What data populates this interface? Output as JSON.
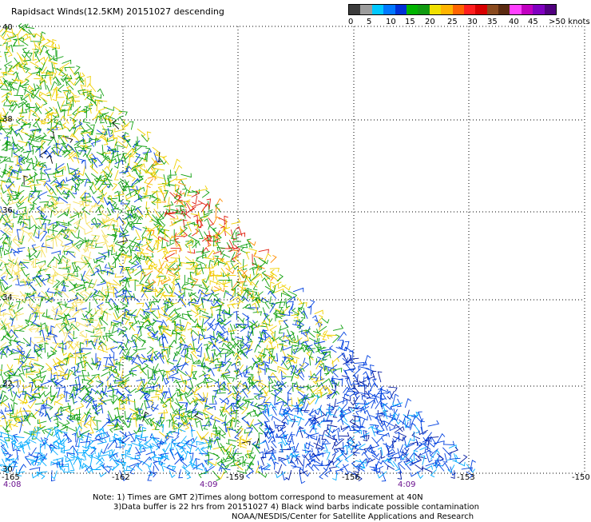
{
  "title": "Rapidsact Winds(12.5KM) 20151027 descending",
  "legend": {
    "colors": [
      "#3c3c3c",
      "#9c9c9c",
      "#00c8ff",
      "#0078ff",
      "#0030d8",
      "#00b400",
      "#109a10",
      "#f0e000",
      "#ffb400",
      "#ff6400",
      "#ff1e1e",
      "#d80000",
      "#8a4a1e",
      "#5a2a10",
      "#ff40ff",
      "#c000c0",
      "#8000c0",
      "#50007e"
    ],
    "tick_labels": [
      "0",
      "5",
      "10",
      "15",
      "20",
      "25",
      "30",
      "35",
      "40",
      "45",
      ">50 knots"
    ]
  },
  "axes": {
    "lat_labels": [
      "40",
      "38",
      "36",
      "34",
      "32",
      "30"
    ],
    "lon_labels": [
      "-165",
      "-162",
      "-159",
      "-156",
      "-153",
      "-150"
    ],
    "time_labels": [
      "4:08",
      "4:09",
      "4:09"
    ]
  },
  "notes": [
    "Note: 1) Times are GMT 2)Times along bottom correspond to measurement at 40N",
    "3)Data buffer is 22 hrs from 20151027 4) Black wind barbs indicate possible contamination",
    "NOAA/NESDIS/Center for Satellite Applications and Research"
  ],
  "wind_colors": {
    "light_blue": "#00aaff",
    "blue": "#0040e0",
    "dark_blue": "#0018a0",
    "green": "#10a010",
    "yellow": "#f0d000",
    "pale_yellow": "#f5e060",
    "orange": "#ff8c00",
    "red": "#e02010",
    "black": "#000000"
  }
}
